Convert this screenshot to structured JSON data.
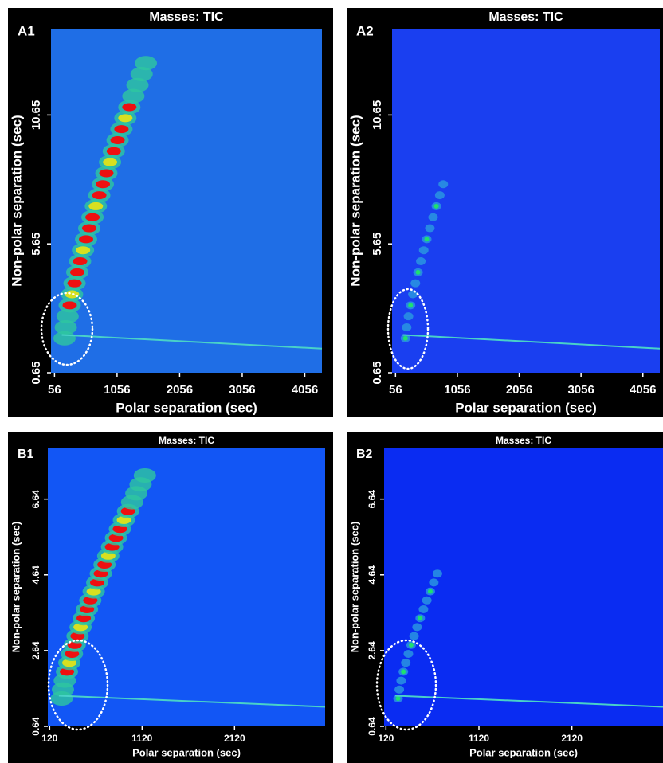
{
  "chart_data": [
    {
      "type": "heatmap",
      "panel_label": "A1",
      "title": "Masses:  TIC",
      "xlabel": "Polar separation (sec)",
      "ylabel": "Non-polar separation (sec)",
      "xlim": [
        0,
        4330
      ],
      "xticks": [
        56,
        1056,
        2056,
        3056,
        4056
      ],
      "ylim": [
        0.65,
        14
      ],
      "yticks": [
        0.65,
        5.65,
        10.65
      ]
    },
    {
      "type": "heatmap",
      "panel_label": "A2",
      "title": "Masses:  TIC",
      "xlabel": "Polar separation (sec)",
      "ylabel": "Non-polar separation (sec)",
      "xlim": [
        0,
        4330
      ],
      "xticks": [
        56,
        1056,
        2056,
        3056,
        4056
      ],
      "ylim": [
        0.65,
        14
      ],
      "yticks": [
        0.65,
        5.65,
        10.65
      ]
    },
    {
      "type": "heatmap",
      "panel_label": "B1",
      "title": "Masses:  TIC",
      "xlabel": "Polar separation (sec)",
      "ylabel": "Non-polar separation (sec)",
      "xlim": [
        100,
        3100
      ],
      "xticks": [
        120,
        1120,
        2120
      ],
      "ylim": [
        0.64,
        8
      ],
      "yticks": [
        0.64,
        2.64,
        4.64,
        6.64
      ]
    },
    {
      "type": "heatmap",
      "panel_label": "B2",
      "title": "Masses:  TIC",
      "xlabel": "Polar separation (sec)",
      "ylabel": "Non-polar separation (sec)",
      "xlim": [
        100,
        3100
      ],
      "xticks": [
        120,
        1120,
        2120
      ],
      "ylim": [
        0.64,
        8
      ],
      "yticks": [
        0.64,
        2.64,
        4.64,
        6.64
      ]
    }
  ]
}
